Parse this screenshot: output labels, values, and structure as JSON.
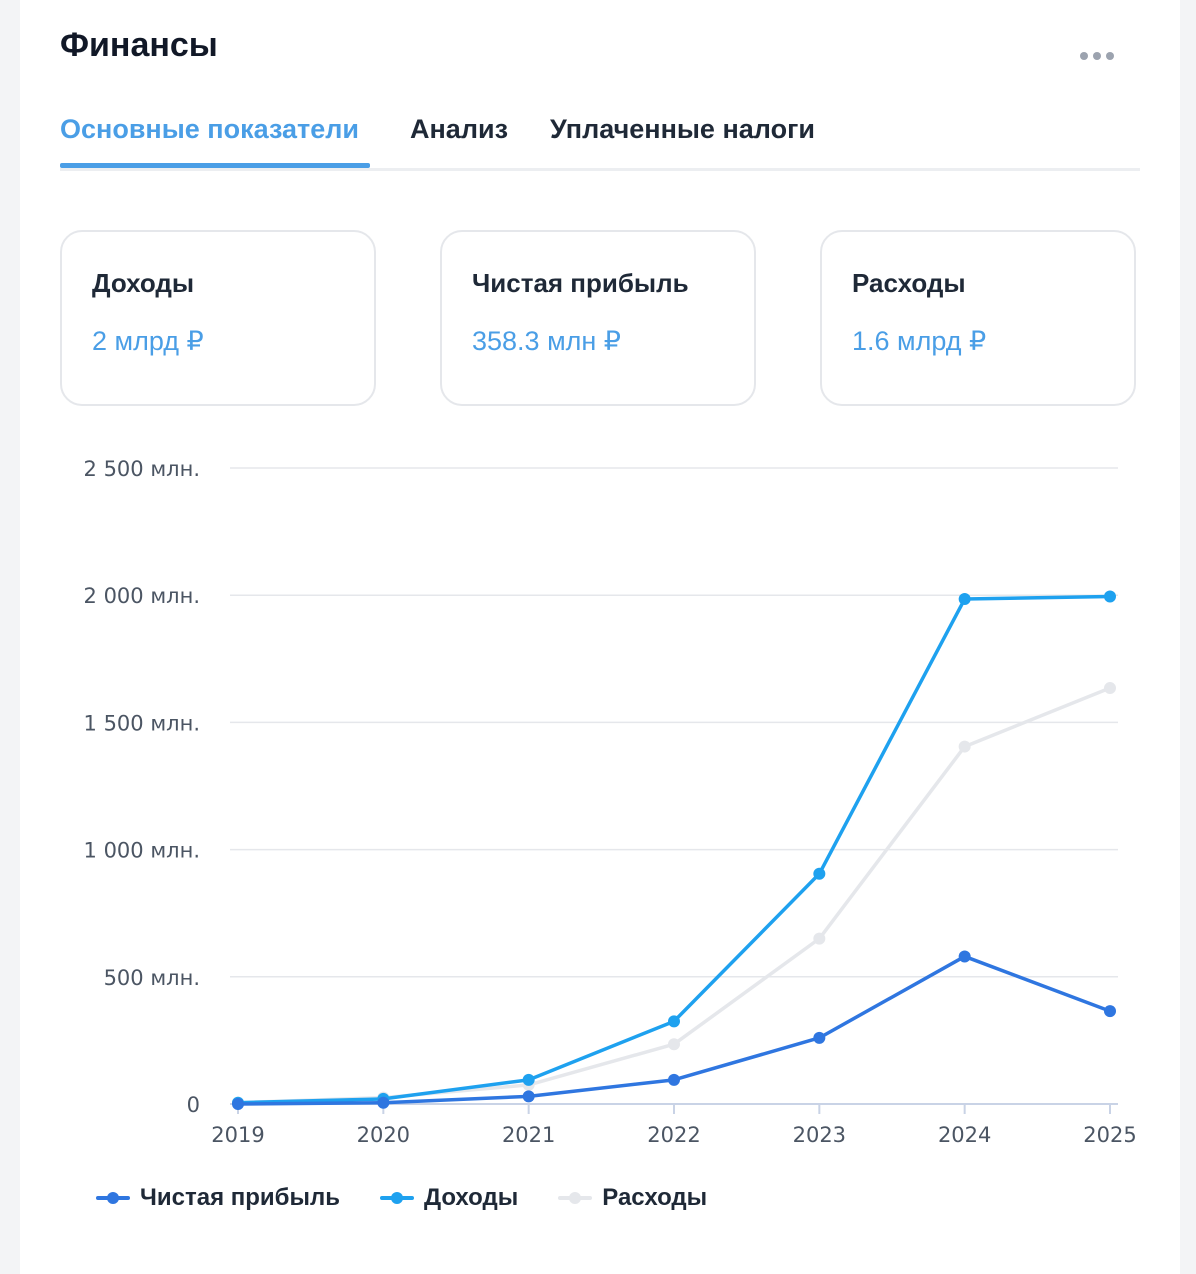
{
  "header": {
    "title": "Финансы"
  },
  "tabs": [
    {
      "label": "Основные показатели",
      "active": true
    },
    {
      "label": "Анализ",
      "active": false
    },
    {
      "label": "Уплаченные налоги",
      "active": false
    }
  ],
  "kpis": [
    {
      "label": "Доходы",
      "value": "2 млрд ₽"
    },
    {
      "label": "Чистая прибыль",
      "value": "358.3 млн ₽"
    },
    {
      "label": "Расходы",
      "value": "1.6 млрд ₽"
    }
  ],
  "icons": {
    "more": "more-dots-icon"
  },
  "colors": {
    "accent": "#4a9ee6",
    "profit": "#2f76e0",
    "income": "#1ea1ef",
    "expenses": "#e5e7eb"
  },
  "chart_data": {
    "type": "line",
    "x": [
      "2019",
      "2020",
      "2021",
      "2022",
      "2023",
      "2024",
      "2025"
    ],
    "ylim": [
      0,
      2500
    ],
    "yticks": [
      {
        "value": 0,
        "label": "0"
      },
      {
        "value": 500,
        "label": "500 млн."
      },
      {
        "value": 1000,
        "label": "1 000 млн."
      },
      {
        "value": 1500,
        "label": "1 500 млн."
      },
      {
        "value": 2000,
        "label": "2 000 млн."
      },
      {
        "value": 2500,
        "label": "2 500 млн."
      }
    ],
    "grid": true,
    "legend_position": "bottom-left",
    "series": [
      {
        "name": "Расходы",
        "color": "#e5e7eb",
        "values": [
          5,
          25,
          75,
          235,
          650,
          1405,
          1635
        ]
      },
      {
        "name": "Доходы",
        "color": "#1ea1ef",
        "values": [
          5,
          20,
          95,
          325,
          905,
          1985,
          1995
        ]
      },
      {
        "name": "Чистая прибыль",
        "color": "#2f76e0",
        "values": [
          0,
          5,
          30,
          95,
          260,
          580,
          365
        ]
      }
    ],
    "legend_order": [
      "Чистая прибыль",
      "Доходы",
      "Расходы"
    ]
  }
}
